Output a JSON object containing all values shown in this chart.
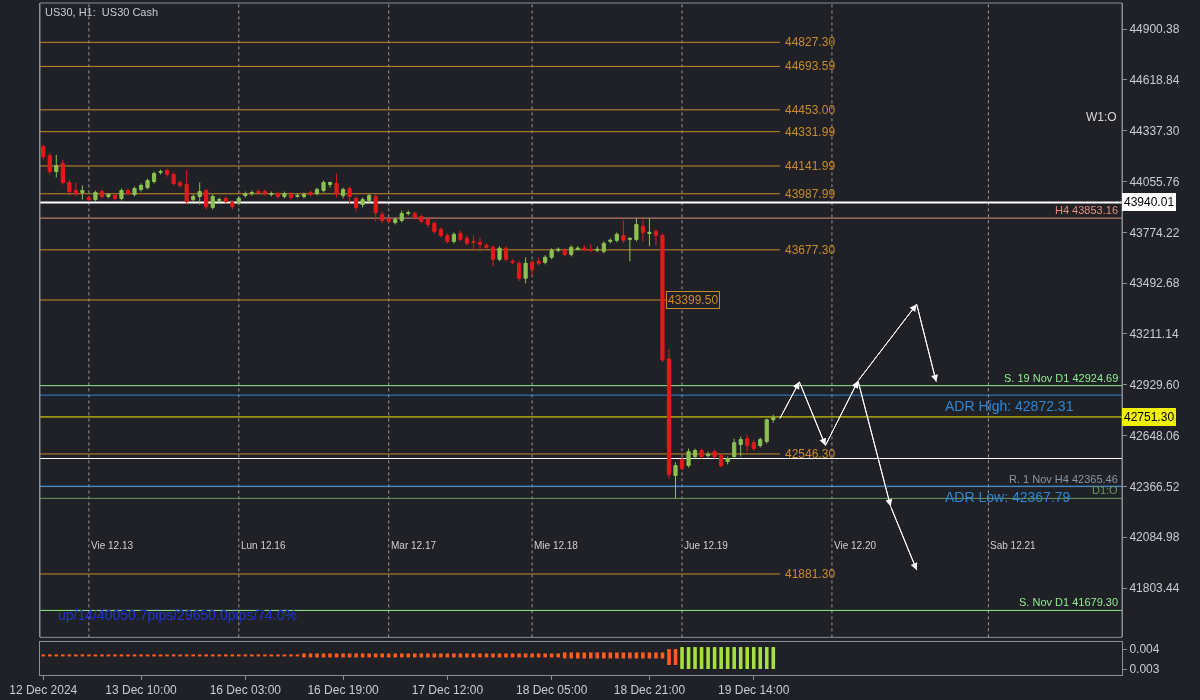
{
  "chart_data": [
    {
      "type": "candlestick",
      "title": "US30, H1:  US30 Cash",
      "categories": [
        "12 Dec 2024",
        null,
        null,
        null,
        null,
        null,
        null,
        null,
        null,
        null,
        null,
        null,
        null,
        null,
        null,
        "13 Dec 10:00",
        null,
        null,
        null,
        null,
        null,
        null,
        null,
        null,
        null,
        null,
        null,
        null,
        null,
        null,
        null,
        "16 Dec 03:00",
        null,
        null,
        null,
        null,
        null,
        null,
        null,
        null,
        null,
        null,
        null,
        null,
        null,
        null,
        "16 Dec 19:00",
        null,
        null,
        null,
        null,
        null,
        null,
        null,
        null,
        null,
        null,
        null,
        null,
        null,
        null,
        null,
        "17 Dec 12:00",
        null,
        null,
        null,
        null,
        null,
        null,
        null,
        null,
        null,
        null,
        null,
        null,
        null,
        null,
        null,
        "18 Dec 05:00",
        null,
        null,
        null,
        null,
        null,
        null,
        null,
        null,
        null,
        null,
        null,
        null,
        null,
        null,
        "18 Dec 21:00",
        null,
        null,
        null,
        null,
        null,
        null,
        null,
        null,
        null,
        null,
        null,
        null,
        null,
        null,
        null,
        "19 Dec 14:00",
        null,
        null,
        null,
        null,
        null,
        null,
        null,
        null,
        null,
        null,
        null,
        null,
        null,
        null,
        null,
        null,
        null,
        null,
        null,
        null,
        null,
        null,
        null,
        null,
        null,
        null,
        null,
        null,
        null,
        null,
        null,
        null,
        null,
        null,
        null,
        null,
        null,
        null,
        null,
        null,
        null,
        null,
        null,
        null,
        null,
        null,
        null,
        null,
        null,
        null,
        null,
        null,
        null,
        null,
        null,
        null
      ],
      "ohlc": [
        [
          44249,
          44260,
          44177,
          44193
        ],
        [
          44199,
          44215,
          44095,
          44111
        ],
        [
          44111,
          44204,
          44078,
          44144
        ],
        [
          44155,
          44177,
          44039,
          44050
        ],
        [
          44050,
          44067,
          43978,
          44000
        ],
        [
          44006,
          44050,
          43973,
          43989
        ],
        [
          43995,
          44034,
          43956,
          44006
        ],
        [
          43967,
          43978,
          43945,
          43956
        ],
        [
          43956,
          44006,
          43945,
          43995
        ],
        [
          44000,
          44012,
          43962,
          43973
        ],
        [
          43973,
          43989,
          43962,
          43984
        ],
        [
          43978,
          43989,
          43951,
          43962
        ],
        [
          43962,
          44017,
          43951,
          44006
        ],
        [
          44006,
          44017,
          43978,
          43989
        ],
        [
          43984,
          44028,
          43973,
          44017
        ],
        [
          44012,
          44045,
          44000,
          44034
        ],
        [
          44022,
          44072,
          44012,
          44061
        ],
        [
          44056,
          44111,
          44045,
          44100
        ],
        [
          44106,
          44122,
          44095,
          44111
        ],
        [
          44117,
          44127,
          44083,
          44095
        ],
        [
          44095,
          44106,
          44034,
          44045
        ],
        [
          44050,
          44061,
          44022,
          44034
        ],
        [
          44039,
          44117,
          43928,
          43945
        ],
        [
          43956,
          43984,
          43945,
          43973
        ],
        [
          43973,
          44050,
          43928,
          44000
        ],
        [
          44006,
          44017,
          43901,
          43917
        ],
        [
          43912,
          43984,
          43901,
          43973
        ],
        [
          43951,
          43967,
          43940,
          43956
        ],
        [
          43962,
          43973,
          43934,
          43945
        ],
        [
          43940,
          43951,
          43901,
          43917
        ],
        [
          43940,
          43973,
          43928,
          43962
        ],
        [
          43978,
          44000,
          43967,
          43989
        ],
        [
          43989,
          44006,
          43978,
          43995
        ],
        [
          44000,
          44012,
          43984,
          43995
        ],
        [
          44000,
          44012,
          43978,
          43989
        ],
        [
          43984,
          44000,
          43973,
          43989
        ],
        [
          43989,
          44000,
          43962,
          43973
        ],
        [
          43973,
          44000,
          43962,
          43989
        ],
        [
          43984,
          43995,
          43956,
          43967
        ],
        [
          43973,
          43989,
          43967,
          43978
        ],
        [
          43973,
          43995,
          43962,
          43984
        ],
        [
          43995,
          44006,
          43973,
          43984
        ],
        [
          43989,
          44022,
          43978,
          44012
        ],
        [
          44006,
          44061,
          43995,
          44050
        ],
        [
          44039,
          44056,
          44022,
          44050
        ],
        [
          44045,
          44100,
          43967,
          43989
        ],
        [
          43978,
          44022,
          43962,
          44012
        ],
        [
          44017,
          44028,
          43934,
          43973
        ],
        [
          43962,
          43973,
          43890,
          43912
        ],
        [
          43928,
          43967,
          43912,
          43956
        ],
        [
          43951,
          43989,
          43934,
          43978
        ],
        [
          43973,
          43984,
          43835,
          43884
        ],
        [
          43873,
          43890,
          43824,
          43840
        ],
        [
          43846,
          43857,
          43824,
          43835
        ],
        [
          43829,
          43857,
          43818,
          43846
        ],
        [
          43840,
          43895,
          43829,
          43879
        ],
        [
          43879,
          43895,
          43868,
          43884
        ],
        [
          43879,
          43890,
          43846,
          43857
        ],
        [
          43862,
          43873,
          43824,
          43835
        ],
        [
          43846,
          43857,
          43802,
          43818
        ],
        [
          43824,
          43835,
          43768,
          43779
        ],
        [
          43790,
          43802,
          43746,
          43757
        ],
        [
          43757,
          43768,
          43713,
          43724
        ],
        [
          43724,
          43774,
          43713,
          43763
        ],
        [
          43768,
          43785,
          43724,
          43735
        ],
        [
          43741,
          43757,
          43702,
          43713
        ],
        [
          43724,
          43757,
          43675,
          43719
        ],
        [
          43719,
          43746,
          43669,
          43708
        ],
        [
          43702,
          43713,
          43680,
          43691
        ],
        [
          43691,
          43702,
          43586,
          43625
        ],
        [
          43625,
          43697,
          43614,
          43686
        ],
        [
          43686,
          43697,
          43614,
          43625
        ],
        [
          43614,
          43625,
          43597,
          43608
        ],
        [
          43603,
          43614,
          43503,
          43520
        ],
        [
          43520,
          43636,
          43492,
          43603
        ],
        [
          43608,
          43619,
          43531,
          43570
        ],
        [
          43614,
          43636,
          43592,
          43603
        ],
        [
          43608,
          43647,
          43597,
          43636
        ],
        [
          43636,
          43686,
          43625,
          43675
        ],
        [
          43675,
          43691,
          43664,
          43680
        ],
        [
          43675,
          43686,
          43641,
          43652
        ],
        [
          43652,
          43702,
          43641,
          43691
        ],
        [
          43680,
          43697,
          43675,
          43686
        ],
        [
          43686,
          43702,
          43669,
          43680
        ],
        [
          43680,
          43708,
          43664,
          43675
        ],
        [
          43675,
          43697,
          43664,
          43680
        ],
        [
          43669,
          43724,
          43658,
          43713
        ],
        [
          43724,
          43741,
          43713,
          43730
        ],
        [
          43730,
          43774,
          43719,
          43763
        ],
        [
          43757,
          43840,
          43713,
          43730
        ],
        [
          43735,
          43746,
          43614,
          43741
        ],
        [
          43735,
          43851,
          43724,
          43818
        ],
        [
          43807,
          43846,
          43724,
          43774
        ],
        [
          43768,
          43851,
          43697,
          43774
        ],
        [
          43779,
          43790,
          43702,
          43757
        ],
        [
          43757,
          43768,
          43056,
          43067
        ],
        [
          43073,
          43128,
          42410,
          42432
        ],
        [
          42427,
          42499,
          42300,
          42482
        ],
        [
          42515,
          42532,
          42455,
          42466
        ],
        [
          42482,
          42576,
          42471,
          42559
        ],
        [
          42532,
          42576,
          42521,
          42565
        ],
        [
          42565,
          42576,
          42521,
          42532
        ],
        [
          42537,
          42559,
          42526,
          42543
        ],
        [
          42559,
          42570,
          42521,
          42532
        ],
        [
          42537,
          42548,
          42471,
          42482
        ],
        [
          42504,
          42532,
          42488,
          42521
        ],
        [
          42532,
          42631,
          42521,
          42609
        ],
        [
          42598,
          42642,
          42532,
          42626
        ],
        [
          42631,
          42653,
          42559,
          42593
        ],
        [
          42609,
          42626,
          42565,
          42576
        ],
        [
          42593,
          42637,
          42582,
          42626
        ],
        [
          42615,
          42742,
          42604,
          42736
        ],
        [
          42736,
          42764,
          42720,
          42747
        ],
        null,
        null,
        null,
        null,
        null,
        null,
        null,
        null,
        null,
        null,
        null,
        null,
        null,
        null,
        null,
        null,
        null,
        null,
        null,
        null,
        null,
        null,
        null,
        null,
        null,
        null,
        null,
        null,
        null,
        null,
        null,
        null,
        null,
        null,
        null,
        null,
        null,
        null,
        null,
        null,
        null,
        null,
        null,
        null,
        null,
        null,
        null,
        null,
        null,
        null,
        null,
        null,
        null
      ],
      "colors": [
        "#e31a1a",
        "#e31a1a",
        "#8cc152",
        "#e31a1a",
        "#e31a1a",
        "#e31a1a",
        "#8cc152",
        "#e31a1a",
        "#8cc152",
        "#e31a1a",
        "#8cc152",
        "#e31a1a",
        "#8cc152",
        "#e31a1a",
        "#8cc152",
        "#8cc152",
        "#8cc152",
        "#8cc152",
        "#8cc152",
        "#e31a1a",
        "#e31a1a",
        "#e31a1a",
        "#e31a1a",
        "#8cc152",
        "#8cc152",
        "#e31a1a",
        "#8cc152",
        "#8cc152",
        "#e31a1a",
        "#e31a1a",
        "#8cc152",
        "#8cc152",
        "#8cc152",
        "#e31a1a",
        "#e31a1a",
        "#8cc152",
        "#e31a1a",
        "#8cc152",
        "#e31a1a",
        "#8cc152",
        "#8cc152",
        "#e31a1a",
        "#8cc152",
        "#8cc152",
        "#8cc152",
        "#e31a1a",
        "#8cc152",
        "#e31a1a",
        "#e31a1a",
        "#8cc152",
        "#8cc152",
        "#e31a1a",
        "#e31a1a",
        "#e31a1a",
        "#8cc152",
        "#8cc152",
        "#8cc152",
        "#e31a1a",
        "#e31a1a",
        "#e31a1a",
        "#e31a1a",
        "#e31a1a",
        "#e31a1a",
        "#8cc152",
        "#e31a1a",
        "#e31a1a",
        "#e31a1a",
        "#e31a1a",
        "#e31a1a",
        "#e31a1a",
        "#8cc152",
        "#e31a1a",
        "#e31a1a",
        "#e31a1a",
        "#8cc152",
        "#e31a1a",
        "#e31a1a",
        "#8cc152",
        "#8cc152",
        "#8cc152",
        "#e31a1a",
        "#8cc152",
        "#8cc152",
        "#e31a1a",
        "#e31a1a",
        "#8cc152",
        "#8cc152",
        "#8cc152",
        "#8cc152",
        "#e31a1a",
        "#8cc152",
        "#8cc152",
        "#e31a1a",
        "#8cc152",
        "#e31a1a",
        "#e31a1a",
        "#e31a1a",
        "#8cc152",
        "#e31a1a",
        "#8cc152",
        "#8cc152",
        "#e31a1a",
        "#8cc152",
        "#e31a1a",
        "#e31a1a",
        "#8cc152",
        "#8cc152",
        "#8cc152",
        "#e31a1a",
        "#e31a1a",
        "#8cc152",
        "#8cc152",
        "#8cc152",
        null,
        null,
        null,
        null,
        null,
        null,
        null,
        null,
        null,
        null,
        null,
        null,
        null,
        null,
        null,
        null,
        null,
        null,
        null,
        null,
        null,
        null,
        null,
        null,
        null,
        null,
        null,
        null,
        null,
        null,
        null,
        null,
        null,
        null,
        null,
        null,
        null,
        null,
        null,
        null,
        null,
        null,
        null,
        null,
        null,
        null,
        null,
        null,
        null,
        null,
        null,
        null,
        null
      ],
      "series": [
        {
          "type": "line",
          "color": "#ffffff",
          "values": [
            null,
            null,
            null,
            null,
            null,
            null,
            null,
            null,
            null,
            null,
            null,
            null,
            null,
            null,
            null,
            null,
            null,
            null,
            null,
            null,
            null,
            null,
            null,
            null,
            null,
            null,
            null,
            null,
            null,
            null,
            null,
            null,
            null,
            null,
            null,
            null,
            null,
            null,
            null,
            null,
            null,
            null,
            null,
            null,
            null,
            null,
            null,
            null,
            null,
            null,
            null,
            null,
            null,
            null,
            null,
            null,
            null,
            null,
            null,
            null,
            null,
            null,
            null,
            null,
            null,
            null,
            null,
            null,
            null,
            null,
            null,
            null,
            null,
            null,
            null,
            null,
            null,
            null,
            null,
            null,
            null,
            null,
            null,
            null,
            null,
            null,
            null,
            null,
            null,
            null,
            null,
            null,
            null,
            null,
            null,
            null,
            null,
            null,
            null,
            null,
            null,
            null,
            null,
            null,
            null,
            null,
            null,
            null,
            null,
            null,
            null,
            null,
            null,
            42742,
            null,
            null,
            42946,
            null,
            null,
            null,
            42593,
            null,
            null,
            null,
            null,
            42951,
            null,
            null,
            null,
            null,
            null,
            null,
            null,
            null,
            43376,
            null,
            null,
            42946,
            null,
            null,
            null,
            null,
            null,
            null,
            null,
            null,
            null,
            null,
            null,
            null,
            null,
            null,
            null,
            null,
            null,
            null,
            null,
            null,
            null,
            null,
            null,
            null,
            null,
            null,
            null,
            null
          ]
        },
        {
          "type": "line",
          "color": "#ffffff",
          "values": [
            null,
            null,
            null,
            null,
            null,
            null,
            null,
            null,
            null,
            null,
            null,
            null,
            null,
            null,
            null,
            null,
            null,
            null,
            null,
            null,
            null,
            null,
            null,
            null,
            null,
            null,
            null,
            null,
            null,
            null,
            null,
            null,
            null,
            null,
            null,
            null,
            null,
            null,
            null,
            null,
            null,
            null,
            null,
            null,
            null,
            null,
            null,
            null,
            null,
            null,
            null,
            null,
            null,
            null,
            null,
            null,
            null,
            null,
            null,
            null,
            null,
            null,
            null,
            null,
            null,
            null,
            null,
            null,
            null,
            null,
            null,
            null,
            null,
            null,
            null,
            null,
            null,
            null,
            null,
            null,
            null,
            null,
            null,
            null,
            null,
            null,
            null,
            null,
            null,
            null,
            null,
            null,
            null,
            null,
            null,
            null,
            null,
            null,
            null,
            null,
            null,
            null,
            null,
            null,
            null,
            null,
            null,
            null,
            null,
            null,
            null,
            null,
            null,
            null,
            null,
            null,
            null,
            null,
            null,
            null,
            null,
            null,
            null,
            null,
            null,
            42951,
            null,
            null,
            null,
            null,
            42256,
            null,
            null,
            null,
            41903,
            null,
            null,
            null,
            null,
            null,
            null,
            null,
            null,
            null,
            null,
            null,
            null,
            null,
            null,
            null,
            null,
            null,
            null,
            null,
            null,
            null,
            null,
            null,
            null,
            null,
            null,
            null,
            null,
            null,
            null,
            null
          ]
        }
      ],
      "marker": "none",
      "ylim": [
        41530,
        45045
      ],
      "yticks": [
        {
          "value": 44900.38,
          "label": "44900.38"
        },
        {
          "value": 44618.84,
          "label": "44618.84"
        },
        {
          "value": 44337.3,
          "label": "44337.30"
        },
        {
          "value": 44055.76,
          "label": "44055.76"
        },
        {
          "value": 43774.22,
          "label": "43774.22"
        },
        {
          "value": 43492.68,
          "label": "43492.68"
        },
        {
          "value": 43211.14,
          "label": "43211.14"
        },
        {
          "value": 42929.6,
          "label": "42929.60"
        },
        {
          "value": 42648.06,
          "label": "42648.06"
        },
        {
          "value": 42366.52,
          "label": "42366.52"
        },
        {
          "value": 42084.98,
          "label": "42084.98"
        },
        {
          "value": 41803.44,
          "label": "41803.44"
        }
      ],
      "ref_lines": [
        {
          "axis": "y",
          "value": 44827.3,
          "label": "44827.30",
          "color": "#c98a2b"
        },
        {
          "axis": "y",
          "value": 44693.59,
          "label": "44693.59",
          "color": "#c98a2b"
        },
        {
          "axis": "y",
          "value": 44453.0,
          "label": "44453.00",
          "color": "#c98a2b"
        },
        {
          "axis": "y",
          "value": 44331.99,
          "label": "44331.99",
          "color": "#c98a2b"
        },
        {
          "axis": "y",
          "value": 44141.99,
          "label": "44141.99",
          "color": "#c98a2b"
        },
        {
          "axis": "y",
          "value": 43987.99,
          "label": "43987.99",
          "color": "#c98a2b"
        },
        {
          "axis": "y",
          "value": 43677.3,
          "label": "43677.30",
          "color": "#c98a2b"
        },
        {
          "axis": "y",
          "value": 43399.5,
          "label": "43399.50",
          "color": "#c98a2b"
        },
        {
          "axis": "y",
          "value": 42546.3,
          "label": "42546.30",
          "color": "#c98a2b"
        },
        {
          "axis": "y",
          "value": 41881.3,
          "label": "41881.30",
          "color": "#c98a2b"
        },
        {
          "axis": "y",
          "value": 43940.01,
          "label": "43940.01",
          "color": "#ffffff"
        },
        {
          "axis": "y",
          "value": 43853.16,
          "label": "H4 43853.16",
          "color": "#e0907a"
        },
        {
          "axis": "y",
          "value": 42924.69,
          "label": "S. 19 Nov D1 42924.69",
          "color": "#90ee90"
        },
        {
          "axis": "y",
          "value": 42872.31,
          "label": "ADR High: 42872.31",
          "color": "#2f86d6"
        },
        {
          "axis": "y",
          "value": 42751.3,
          "label": "42751.30",
          "color": "#f0f000"
        },
        {
          "axis": "y",
          "value": 42521,
          "label": null,
          "color": "#ffffff"
        },
        {
          "axis": "y",
          "value": 42365.46,
          "label": "R. 1 Nov H4 42365.46",
          "color": "#8a96a3"
        },
        {
          "axis": "y",
          "value": 42367.79,
          "label": "ADR Low: 42367.79",
          "color": "#2f86d6"
        },
        {
          "axis": "y",
          "value": 42300,
          "label": "D1:O",
          "color": "#6b9a5a"
        },
        {
          "axis": "y",
          "value": 41679.3,
          "label": "S. Nov D1 41679.30",
          "color": "#90ee90"
        }
      ],
      "annotations": [
        "W1:O",
        "up/14/40050.7pips/29650.0pips/74.0%",
        "Vie 12.13",
        "Lun 12.16",
        "Mar 12.17",
        "Mie 12.18",
        "Jue 12.19",
        "Vie 12.20",
        "Sab 12.21"
      ]
    },
    {
      "type": "bar",
      "tick_labels": "y",
      "categories": [
        null,
        null,
        null,
        null,
        null,
        null,
        null,
        null,
        null,
        null,
        null,
        null,
        null,
        null,
        null,
        null,
        null,
        null,
        null,
        null,
        null,
        null,
        null,
        null,
        null,
        null,
        null,
        null,
        null,
        null,
        null,
        null,
        null,
        null,
        null,
        null,
        null,
        null,
        null,
        null,
        null,
        null,
        null,
        null,
        null,
        null,
        null,
        null,
        null,
        null,
        null,
        null,
        null,
        null,
        null,
        null,
        null,
        null,
        null,
        null,
        null,
        null,
        null,
        null,
        null,
        null,
        null,
        null,
        null,
        null,
        null,
        null,
        null,
        null,
        null,
        null,
        null,
        null,
        null,
        null,
        null,
        null,
        null,
        null,
        null,
        null,
        null,
        null,
        null,
        null,
        null,
        null,
        null,
        null,
        null,
        null,
        null,
        null,
        null,
        null,
        null,
        null,
        null,
        null,
        null,
        null,
        null,
        null,
        null,
        null,
        null,
        null,
        null,
        null,
        null,
        null,
        null,
        null,
        null,
        null,
        null,
        null,
        null,
        null,
        null,
        null,
        null,
        null,
        null,
        null,
        null,
        null,
        null,
        null,
        null,
        null,
        null,
        null,
        null,
        null,
        null,
        null,
        null,
        null,
        null,
        null,
        null,
        null,
        null,
        null,
        null,
        null,
        null,
        null,
        null,
        null,
        null,
        null,
        null,
        null,
        null,
        null,
        null,
        null,
        null,
        null
      ],
      "base": [
        0.00363,
        0.00363,
        0.00363,
        0.00363,
        0.00363,
        0.00363,
        0.00363,
        0.00363,
        0.00363,
        0.00363,
        0.00363,
        0.00363,
        0.00363,
        0.00363,
        0.00363,
        0.00363,
        0.00363,
        0.00363,
        0.00363,
        0.00363,
        0.00363,
        0.00363,
        0.00363,
        0.00363,
        0.00363,
        0.00363,
        0.00363,
        0.00363,
        0.00363,
        0.00363,
        0.00363,
        0.00363,
        0.00363,
        0.00363,
        0.00363,
        0.00363,
        0.00363,
        0.00363,
        0.00363,
        0.00363,
        0.00358,
        0.00358,
        0.00358,
        0.00358,
        0.00358,
        0.00358,
        0.00358,
        0.00358,
        0.00358,
        0.00358,
        0.00358,
        0.00358,
        0.00358,
        0.00358,
        0.00358,
        0.00358,
        0.00358,
        0.00358,
        0.00358,
        0.00358,
        0.00358,
        0.00358,
        0.00358,
        0.00358,
        0.00358,
        0.00358,
        0.00358,
        0.00358,
        0.00358,
        0.00358,
        0.00358,
        0.00358,
        0.00358,
        0.00358,
        0.00358,
        0.00358,
        0.00358,
        0.00358,
        0.00358,
        0.00358,
        0.00353,
        0.00353,
        0.00353,
        0.00353,
        0.00353,
        0.00353,
        0.00353,
        0.00353,
        0.00353,
        0.00353,
        0.00353,
        0.00353,
        0.00353,
        0.00353,
        0.00353,
        0.00353,
        0.0032,
        0.0032,
        0.003,
        0.003,
        0.003,
        0.003,
        0.003,
        0.003,
        0.003,
        0.003,
        0.003,
        0.003,
        0.003,
        0.003,
        0.003,
        0.003,
        0.003,
        null,
        null,
        null,
        null,
        null,
        null,
        null,
        null,
        null,
        null,
        null,
        null,
        null,
        null,
        null,
        null,
        null,
        null,
        null,
        null,
        null,
        null,
        null,
        null,
        null,
        null,
        null,
        null,
        null,
        null,
        null,
        null,
        null,
        null,
        null,
        null,
        null,
        null,
        null,
        null,
        null,
        null,
        null,
        null,
        null,
        null,
        null,
        null,
        null,
        null,
        null,
        null,
        null
      ],
      "values": [
        0.0001,
        0.0001,
        0.0001,
        0.0001,
        0.0001,
        0.0001,
        0.0001,
        0.0001,
        0.0001,
        0.0001,
        0.0001,
        0.0001,
        0.0001,
        0.0001,
        0.0001,
        0.0001,
        0.0001,
        0.0001,
        0.0001,
        0.0001,
        0.0001,
        0.0001,
        0.0001,
        0.0001,
        0.0001,
        0.0001,
        0.0001,
        0.0001,
        0.0001,
        0.0001,
        0.0001,
        0.0001,
        0.0001,
        0.0001,
        0.0001,
        0.0001,
        0.0001,
        0.0001,
        0.0001,
        0.0001,
        0.0002,
        0.0002,
        0.0002,
        0.0002,
        0.0002,
        0.0002,
        0.0002,
        0.0002,
        0.0002,
        0.0002,
        0.0002,
        0.0002,
        0.0002,
        0.0002,
        0.0002,
        0.0002,
        0.0002,
        0.0002,
        0.0002,
        0.0002,
        0.0002,
        0.0002,
        0.0002,
        0.0002,
        0.0002,
        0.0002,
        0.0002,
        0.0002,
        0.0002,
        0.0002,
        0.0002,
        0.0002,
        0.0002,
        0.0002,
        0.0002,
        0.0002,
        0.0002,
        0.0002,
        0.0002,
        0.0002,
        0.0003,
        0.0003,
        0.0003,
        0.0003,
        0.0003,
        0.0003,
        0.0003,
        0.0003,
        0.0003,
        0.0003,
        0.0003,
        0.0003,
        0.0003,
        0.0003,
        0.0003,
        0.0003,
        0.0008,
        0.0008,
        0.0011,
        0.0011,
        0.0011,
        0.0011,
        0.0011,
        0.0011,
        0.0011,
        0.0011,
        0.0011,
        0.0011,
        0.0011,
        0.0011,
        0.0011,
        0.0011,
        0.0011,
        null,
        null,
        null,
        null,
        null,
        null,
        null,
        null,
        null,
        null,
        null,
        null,
        null,
        null,
        null,
        null,
        null,
        null,
        null,
        null,
        null,
        null,
        null,
        null,
        null,
        null,
        null,
        null,
        null,
        null,
        null,
        null,
        null,
        null,
        null,
        null,
        null,
        null,
        null,
        null,
        null,
        null,
        null,
        null,
        null,
        null,
        null,
        null,
        null,
        null,
        null,
        null,
        null
      ],
      "colors": [
        "#ff5a1f",
        "#ff5a1f",
        "#ff5a1f",
        "#ff5a1f",
        "#ff5a1f",
        "#ff5a1f",
        "#ff5a1f",
        "#ff5a1f",
        "#ff5a1f",
        "#ff5a1f",
        "#ff5a1f",
        "#ff5a1f",
        "#ff5a1f",
        "#ff5a1f",
        "#ff5a1f",
        "#ff5a1f",
        "#ff5a1f",
        "#ff5a1f",
        "#ff5a1f",
        "#ff5a1f",
        "#ff5a1f",
        "#ff5a1f",
        "#ff5a1f",
        "#ff5a1f",
        "#ff5a1f",
        "#ff5a1f",
        "#ff5a1f",
        "#ff5a1f",
        "#ff5a1f",
        "#ff5a1f",
        "#ff5a1f",
        "#ff5a1f",
        "#ff5a1f",
        "#ff5a1f",
        "#ff5a1f",
        "#ff5a1f",
        "#ff5a1f",
        "#ff5a1f",
        "#ff5a1f",
        "#ff5a1f",
        "#ff5a1f",
        "#ff5a1f",
        "#ff5a1f",
        "#ff5a1f",
        "#ff5a1f",
        "#ff5a1f",
        "#ff5a1f",
        "#ff5a1f",
        "#ff5a1f",
        "#ff5a1f",
        "#ff5a1f",
        "#ff5a1f",
        "#ff5a1f",
        "#ff5a1f",
        "#ff5a1f",
        "#ff5a1f",
        "#ff5a1f",
        "#ff5a1f",
        "#ff5a1f",
        "#ff5a1f",
        "#ff5a1f",
        "#ff5a1f",
        "#ff5a1f",
        "#ff5a1f",
        "#ff5a1f",
        "#ff5a1f",
        "#ff5a1f",
        "#ff5a1f",
        "#ff5a1f",
        "#ff5a1f",
        "#ff5a1f",
        "#ff5a1f",
        "#ff5a1f",
        "#ff5a1f",
        "#ff5a1f",
        "#ff5a1f",
        "#ff5a1f",
        "#ff5a1f",
        "#ff5a1f",
        "#ff5a1f",
        "#ff5a1f",
        "#ff5a1f",
        "#ff5a1f",
        "#ff5a1f",
        "#ff5a1f",
        "#ff5a1f",
        "#ff5a1f",
        "#ff5a1f",
        "#ff5a1f",
        "#ff5a1f",
        "#ff5a1f",
        "#ff5a1f",
        "#ff5a1f",
        "#ff5a1f",
        "#ff5a1f",
        "#ff5a1f",
        "#ff5a1f",
        "#ff5a1f",
        "#a6e040",
        "#a6e040",
        "#a6e040",
        "#a6e040",
        "#a6e040",
        "#a6e040",
        "#a6e040",
        "#a6e040",
        "#a6e040",
        "#a6e040",
        "#a6e040",
        "#a6e040",
        "#a6e040",
        "#a6e040",
        "#a6e040",
        null,
        null,
        null,
        null,
        null,
        null,
        null,
        null,
        null,
        null,
        null,
        null,
        null,
        null,
        null,
        null,
        null,
        null,
        null,
        null,
        null,
        null,
        null,
        null,
        null,
        null,
        null,
        null,
        null,
        null,
        null,
        null,
        null,
        null,
        null,
        null,
        null,
        null,
        null,
        null,
        null,
        null,
        null,
        null,
        null,
        null,
        null,
        null,
        null,
        null,
        null,
        null,
        null
      ],
      "ylim": [
        0.0027,
        0.00435
      ],
      "yticks": [
        {
          "value": 0.004,
          "label": "0.004"
        },
        {
          "value": 0.003,
          "label": "0.003"
        }
      ]
    }
  ]
}
